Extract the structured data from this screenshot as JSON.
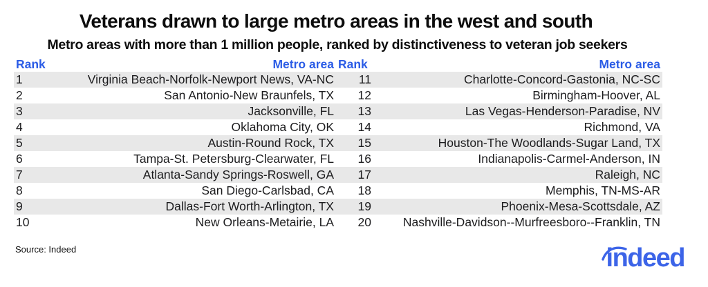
{
  "chart_data": {
    "type": "table",
    "title": "Veterans drawn to large metro areas in the west and south",
    "subtitle": "Metro areas with more than 1 million people, ranked by distinctiveness to veteran job seekers",
    "column_headers": [
      "Rank",
      "Metro area"
    ],
    "layout": "two side-by-side ranked lists: ranks 1-10 in left half, ranks 11-20 in right half, alternating gray row stripes",
    "ranking": [
      {
        "rank": 1,
        "metro": "Virginia Beach-Norfolk-Newport News, VA-NC"
      },
      {
        "rank": 2,
        "metro": "San Antonio-New Braunfels, TX"
      },
      {
        "rank": 3,
        "metro": "Jacksonville, FL"
      },
      {
        "rank": 4,
        "metro": "Oklahoma City, OK"
      },
      {
        "rank": 5,
        "metro": "Austin-Round Rock, TX"
      },
      {
        "rank": 6,
        "metro": "Tampa-St. Petersburg-Clearwater, FL"
      },
      {
        "rank": 7,
        "metro": "Atlanta-Sandy Springs-Roswell, GA"
      },
      {
        "rank": 8,
        "metro": "San Diego-Carlsbad, CA"
      },
      {
        "rank": 9,
        "metro": "Dallas-Fort Worth-Arlington, TX"
      },
      {
        "rank": 10,
        "metro": "New Orleans-Metairie, LA"
      },
      {
        "rank": 11,
        "metro": "Charlotte-Concord-Gastonia, NC-SC"
      },
      {
        "rank": 12,
        "metro": "Birmingham-Hoover, AL"
      },
      {
        "rank": 13,
        "metro": "Las Vegas-Henderson-Paradise, NV"
      },
      {
        "rank": 14,
        "metro": "Richmond, VA"
      },
      {
        "rank": 15,
        "metro": "Houston-The Woodlands-Sugar Land, TX"
      },
      {
        "rank": 16,
        "metro": "Indianapolis-Carmel-Anderson, IN"
      },
      {
        "rank": 17,
        "metro": "Raleigh, NC"
      },
      {
        "rank": 18,
        "metro": "Memphis, TN-MS-AR"
      },
      {
        "rank": 19,
        "metro": "Phoenix-Mesa-Scottsdale, AZ"
      },
      {
        "rank": 20,
        "metro": "Nashville-Davidson--Murfreesboro--Franklin, TN"
      }
    ]
  },
  "source": "Source: Indeed",
  "logo": {
    "brand": "indeed"
  },
  "colors": {
    "accent_blue": "#2B5CE6",
    "logo_blue": "#3C64E8",
    "stripe": "#E8E8E8",
    "text": "#1C1C1E",
    "background": "#FFFFFF"
  }
}
